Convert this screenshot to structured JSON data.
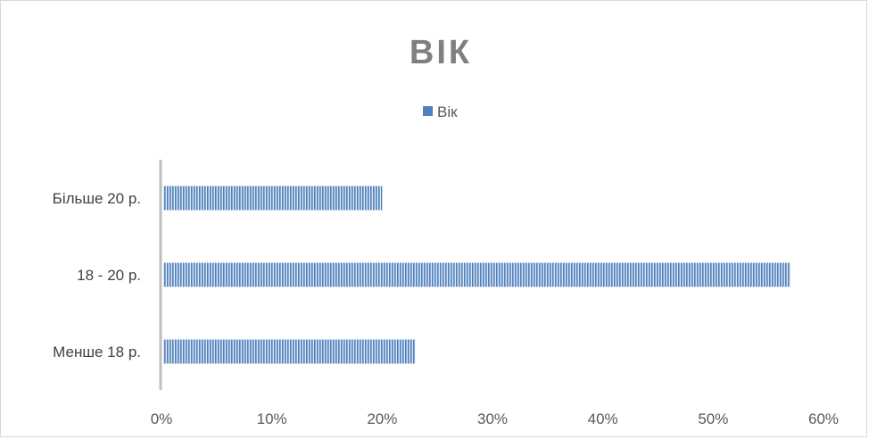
{
  "chart_data": {
    "type": "bar",
    "orientation": "horizontal",
    "title": "ВІК",
    "categories": [
      "Менше 18 р.",
      "18 - 20 р.",
      "Більше 20 р."
    ],
    "series": [
      {
        "name": "Вік",
        "values": [
          0.23,
          0.57,
          0.2
        ],
        "color": "#4f81bd"
      }
    ],
    "xlim": [
      0,
      0.6
    ],
    "xticks": [
      "0%",
      "10%",
      "20%",
      "30%",
      "40%",
      "50%",
      "60%"
    ],
    "legend_position": "top",
    "grid": false
  }
}
